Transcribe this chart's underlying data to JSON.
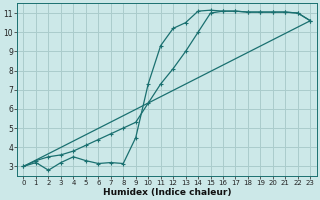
{
  "xlabel": "Humidex (Indice chaleur)",
  "bg_color": "#cce8e8",
  "grid_color": "#aacccc",
  "line_color": "#1a7070",
  "xlim": [
    -0.5,
    23.5
  ],
  "ylim": [
    2.5,
    11.5
  ],
  "xticks": [
    0,
    1,
    2,
    3,
    4,
    5,
    6,
    7,
    8,
    9,
    10,
    11,
    12,
    13,
    14,
    15,
    16,
    17,
    18,
    19,
    20,
    21,
    22,
    23
  ],
  "yticks": [
    3,
    4,
    5,
    6,
    7,
    8,
    9,
    10,
    11
  ],
  "line1_x": [
    0,
    1,
    2,
    3,
    4,
    5,
    6,
    7,
    8,
    9,
    10,
    11,
    12,
    13,
    14,
    15,
    16,
    17,
    18,
    19,
    20,
    21,
    22,
    23
  ],
  "line1_y": [
    3.0,
    3.2,
    2.8,
    3.2,
    3.5,
    3.3,
    3.15,
    3.2,
    3.15,
    4.5,
    7.3,
    9.3,
    10.2,
    10.5,
    11.1,
    11.15,
    11.1,
    11.1,
    11.05,
    11.05,
    11.05,
    11.05,
    11.0,
    10.6
  ],
  "line2_x": [
    0,
    1,
    2,
    3,
    4,
    5,
    6,
    7,
    8,
    9,
    10,
    11,
    12,
    13,
    14,
    15,
    16,
    17,
    18,
    19,
    20,
    21,
    22,
    23
  ],
  "line2_y": [
    3.0,
    3.3,
    3.5,
    3.6,
    3.8,
    4.1,
    4.4,
    4.7,
    5.0,
    5.3,
    6.3,
    7.3,
    8.1,
    9.0,
    10.0,
    11.0,
    11.1,
    11.1,
    11.05,
    11.05,
    11.05,
    11.05,
    11.0,
    10.6
  ],
  "line3_x": [
    0,
    23
  ],
  "line3_y": [
    3.0,
    10.6
  ]
}
